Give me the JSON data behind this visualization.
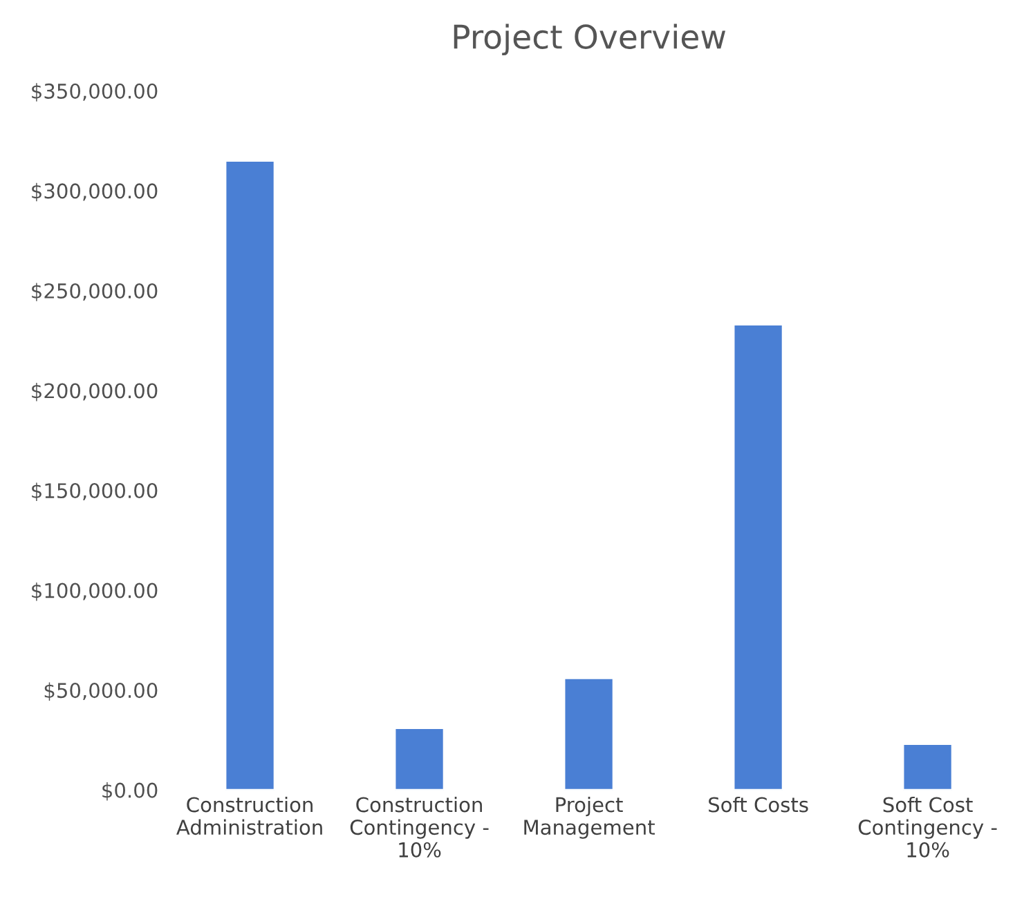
{
  "chart_data": {
    "type": "bar",
    "title": "Project Overview",
    "categories": [
      "Construction Administration",
      "Construction Contingency - 10%",
      "Project Management",
      "Soft Costs",
      "Soft Cost Contingency - 10%"
    ],
    "values": [
      315000,
      31000,
      56000,
      233000,
      23000
    ],
    "color": "#4a7fd4",
    "ylim": [
      0,
      350000
    ],
    "yticks": [
      {
        "value": 0,
        "label": "$0.00"
      },
      {
        "value": 50000,
        "label": "$50,000.00"
      },
      {
        "value": 100000,
        "label": "$100,000.00"
      },
      {
        "value": 150000,
        "label": "$150,000.00"
      },
      {
        "value": 200000,
        "label": "$200,000.00"
      },
      {
        "value": 250000,
        "label": "$250,000.00"
      },
      {
        "value": 300000,
        "label": "$300,000.00"
      },
      {
        "value": 350000,
        "label": "$350,000.00"
      }
    ],
    "grid": false,
    "legend": false
  }
}
